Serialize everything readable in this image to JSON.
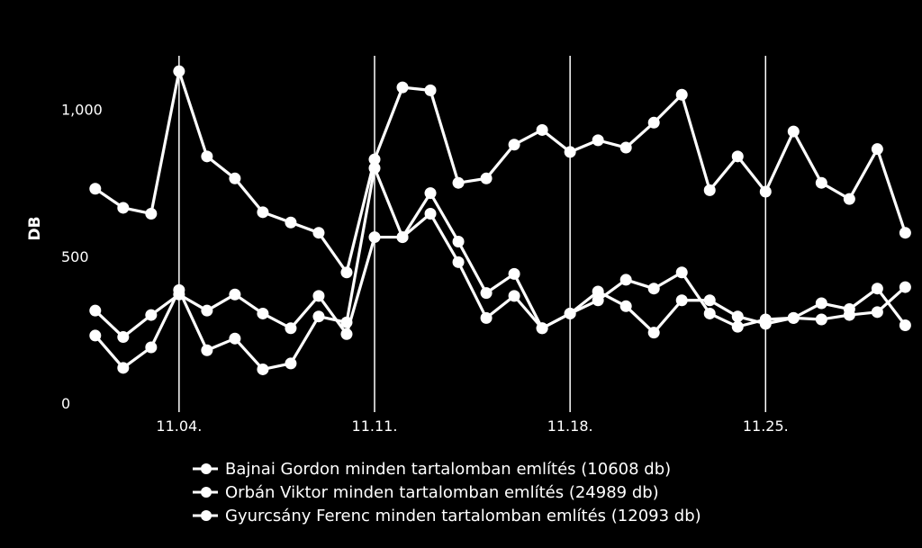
{
  "chart_data": {
    "type": "line",
    "ylabel": "DB",
    "ylim": [
      0,
      1250
    ],
    "yticks": [
      0,
      500,
      1000
    ],
    "ytick_labels": [
      "0",
      "500",
      "1,000"
    ],
    "xlim": [
      0.2,
      29.6
    ],
    "xticks": [
      3,
      10,
      17,
      24
    ],
    "xtick_labels": [
      "11.04.",
      "11.11.",
      "11.18.",
      "11.25."
    ],
    "grid": "vertical lines at x ticks",
    "legend": "bottom",
    "x": [
      0,
      1,
      2,
      3,
      4,
      5,
      6,
      7,
      8,
      9,
      10,
      11,
      12,
      13,
      14,
      15,
      16,
      17,
      18,
      19,
      20,
      21,
      22,
      23,
      24,
      25,
      26,
      27,
      28,
      29
    ],
    "series": [
      {
        "name": "Bajnai Gordon minden tartalomban említés (10608 db)",
        "color": "#ffffff",
        "values": [
          230,
          120,
          190,
          385,
          180,
          220,
          115,
          135,
          295,
          275,
          800,
          565,
          645,
          480,
          290,
          365,
          255,
          305,
          380,
          330,
          240,
          350,
          350,
          295,
          270,
          290,
          340,
          320,
          390,
          265
        ]
      },
      {
        "name": "Orbán Viktor minden tartalomban említés (24989 db)",
        "color": "#ffffff",
        "values": [
          730,
          665,
          645,
          1130,
          840,
          765,
          650,
          615,
          580,
          445,
          830,
          1075,
          1065,
          750,
          765,
          880,
          930,
          855,
          895,
          870,
          955,
          1050,
          725,
          840,
          720,
          925,
          750,
          695,
          865,
          580
        ]
      },
      {
        "name": "Gyurcsány Ferenc minden tartalomban említés (12093 db)",
        "color": "#ffffff",
        "values": [
          315,
          225,
          300,
          370,
          315,
          370,
          305,
          255,
          365,
          235,
          565,
          565,
          715,
          550,
          375,
          440,
          255,
          305,
          350,
          420,
          390,
          445,
          305,
          260,
          285,
          290,
          285,
          300,
          310,
          395
        ]
      }
    ]
  }
}
